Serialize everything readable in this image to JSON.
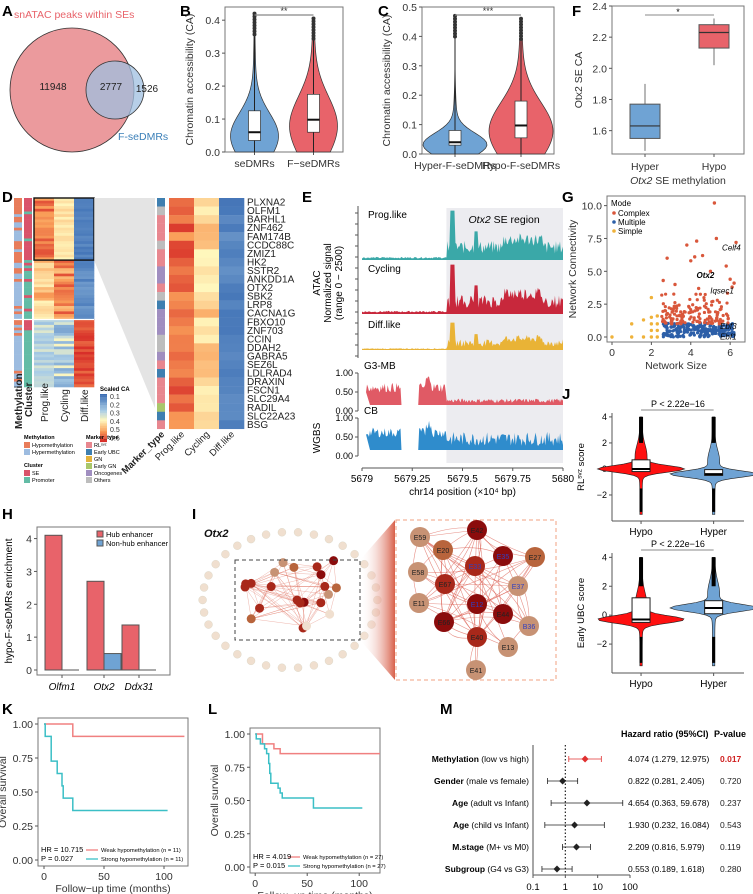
{
  "colors": {
    "red": "#e8636a",
    "blue": "#6fa3d4",
    "teal": "#3aa8a8",
    "crimson": "#c8283c",
    "gold": "#e9b336",
    "wgbs_red": "#e05a65",
    "wgbs_blue": "#2f8ccc",
    "km_red": "#f08080",
    "km_teal": "#3bbfc6",
    "forest_red": "#e03030"
  },
  "panels": {
    "A": {
      "label": "A",
      "title": "snATAC peaks within SEs",
      "set2_label": "F-seDMRs",
      "only_left": "11948",
      "overlap": "2777",
      "only_right": "1526"
    },
    "B": {
      "label": "B"
    },
    "C": {
      "label": "C"
    },
    "D": {
      "label": "D",
      "row_anno_labels": [
        "Methylation",
        "Cluster"
      ],
      "col_labels": [
        "Prog.like",
        "Cycling",
        "Diff.like"
      ],
      "zoom_col_labels": [
        "Marker_type",
        "Prog.like",
        "Cycling",
        "Diff.like"
      ],
      "scale_title": "Scaled CA",
      "scale_ticks": [
        "0.1",
        "0.2",
        "0.3",
        "0.4",
        "0.5",
        "0.6"
      ],
      "legend_methylation_title": "Methylation",
      "legend_methylation": [
        "Hypomethylation",
        "Hypermethylation"
      ],
      "legend_cluster_title": "Cluster",
      "legend_cluster": [
        "SE",
        "Promoter"
      ],
      "legend_marker_title": "Marker_type",
      "legend_marker": [
        "RLˢᵛᶻ",
        "Early UBC",
        "GN",
        "Early GN",
        "Oncogenes",
        "Others"
      ],
      "genes": [
        "PLXNA2",
        "OLFM1",
        "BARHL1",
        "ZNF462",
        "FAM174B",
        "CCDC88C",
        "ZMIZ1",
        "HK2",
        "SSTR2",
        "ANKDD1A",
        "OTX2",
        "SBK2",
        "LRP8",
        "CACNA1G",
        "FBXO10",
        "ZNF703",
        "CCIN",
        "DDAH2",
        "GABRA5",
        "SEZ6L",
        "LDLRAD4",
        "DRAXIN",
        "FSCN1",
        "SLC29A4",
        "RADIL",
        "SLC22A23",
        "BSG"
      ]
    },
    "E": {
      "label": "E",
      "region_label_italic": "Otx2",
      "region_label_rest": " SE region",
      "tracks_atac": [
        "Prog.like",
        "Cycling",
        "Diff.like"
      ],
      "tracks_wgbs": [
        "G3-MB",
        "CB"
      ],
      "ylabel_atac": [
        "ATAC",
        "Normalized signal",
        "(range 0 − 2500)"
      ],
      "ylabel_wgbs": "WGBS",
      "wgbs_ticks": [
        "1.00",
        "0.50",
        "0.00"
      ],
      "x_ticks": [
        "5679",
        "5679.25",
        "5679.5",
        "5679.75",
        "5680"
      ],
      "xlabel": "chr14 position (×10⁴ bp)"
    },
    "F": {
      "label": "F"
    },
    "G": {
      "label": "G"
    },
    "H": {
      "label": "H"
    },
    "I": {
      "label": "I",
      "gene": "Otx2",
      "zoom_nodes": [
        {
          "id": "E59",
          "level": 1
        },
        {
          "id": "E42",
          "level": 4
        },
        {
          "id": "E20",
          "level": 2
        },
        {
          "id": "E35",
          "level": 4,
          "blue": true
        },
        {
          "id": "E27",
          "level": 2
        },
        {
          "id": "E33",
          "level": 3,
          "blue": true
        },
        {
          "id": "E58",
          "level": 1
        },
        {
          "id": "E67",
          "level": 3
        },
        {
          "id": "E37",
          "level": 1,
          "blue": true
        },
        {
          "id": "E12",
          "level": 4,
          "blue": true
        },
        {
          "id": "E11",
          "level": 1
        },
        {
          "id": "E44",
          "level": 4
        },
        {
          "id": "E66",
          "level": 4
        },
        {
          "id": "B36",
          "level": 1,
          "blue": true
        },
        {
          "id": "E40",
          "level": 3
        },
        {
          "id": "E13",
          "level": 1
        },
        {
          "id": "E41",
          "level": 1
        }
      ]
    },
    "J": {
      "label": "J"
    },
    "K": {
      "label": "K"
    },
    "L": {
      "label": "L"
    },
    "M": {
      "label": "M",
      "col_hr": "Hazard ratio (95%CI)",
      "col_p": "P-value",
      "rows": [
        {
          "bold": "Methylation",
          "rest": " (low vs high)",
          "hr": 4.074,
          "lo": 1.279,
          "hi": 12.975,
          "text": "4.074 (1.279, 12.975)",
          "p": "0.017",
          "sig": true
        },
        {
          "bold": "Gender",
          "rest": " (male vs female)",
          "hr": 0.822,
          "lo": 0.281,
          "hi": 2.405,
          "text": "0.822 (0.281, 2.405)",
          "p": "0.720",
          "sig": false
        },
        {
          "bold": "Age",
          "rest": " (adult vs Infant)",
          "hr": 4.654,
          "lo": 0.363,
          "hi": 59.678,
          "text": "4.654 (0.363, 59.678)",
          "p": "0.237",
          "sig": false
        },
        {
          "bold": "Age",
          "rest": " (child vs Infant)",
          "hr": 1.93,
          "lo": 0.232,
          "hi": 16.084,
          "text": "1.930 (0.232, 16.084)",
          "p": "0.543",
          "sig": false
        },
        {
          "bold": "M.stage",
          "rest": " (M+ vs M0)",
          "hr": 2.209,
          "lo": 0.816,
          "hi": 5.979,
          "text": "2.209 (0.816, 5.979)",
          "p": "0.119",
          "sig": false
        },
        {
          "bold": "Subgroup",
          "rest": " (G4 vs G3)",
          "hr": 0.553,
          "lo": 0.189,
          "hi": 1.618,
          "text": "0.553 (0.189, 1.618)",
          "p": "0.280",
          "sig": false
        }
      ],
      "x_ticks": [
        "0.1",
        "1",
        "10",
        "100"
      ]
    }
  },
  "chart_data": [
    {
      "panel": "A",
      "type": "venn",
      "title": "snATAC peaks within SEs",
      "sets": [
        {
          "name": "snATAC peaks within SEs",
          "only": 11948
        },
        {
          "name": "F-seDMRs",
          "only": 1526
        }
      ],
      "overlap": 2777
    },
    {
      "panel": "B",
      "type": "violin",
      "ylabel": "Chromatin accessibility (CA)",
      "categories": [
        "seDMRs",
        "F−seDMRs"
      ],
      "ylim": [
        0,
        0.44
      ],
      "yticks": [
        "0.0",
        "0.1",
        "0.2",
        "0.3",
        "0.4"
      ],
      "significance": "**",
      "series": [
        {
          "name": "seDMRs",
          "median": 0.06,
          "q1": 0.035,
          "q3": 0.125,
          "max": 0.42,
          "color": "blue"
        },
        {
          "name": "F−seDMRs",
          "median": 0.098,
          "q1": 0.06,
          "q3": 0.175,
          "max": 0.405,
          "color": "red"
        }
      ]
    },
    {
      "panel": "C",
      "type": "violin",
      "ylabel": "Chromatin accessibility (CA)",
      "categories": [
        "Hyper-F-seDMRs",
        "Hypo-F-seDMRs"
      ],
      "ylim": [
        0,
        0.5
      ],
      "yticks": [
        "0.0",
        "0.1",
        "0.2",
        "0.3",
        "0.4",
        "0.5"
      ],
      "significance": "***",
      "series": [
        {
          "name": "Hyper-F-seDMRs",
          "median": 0.04,
          "q1": 0.03,
          "q3": 0.08,
          "max": 0.47,
          "color": "blue"
        },
        {
          "name": "Hypo-F-seDMRs",
          "median": 0.097,
          "q1": 0.055,
          "q3": 0.18,
          "max": 0.46,
          "color": "red"
        }
      ]
    },
    {
      "panel": "F",
      "type": "box",
      "ylabel": "Otx2 SE CA",
      "xlabel": "Otx2 SE methylation",
      "categories": [
        "Hyper",
        "Hypo"
      ],
      "ylim": [
        1.45,
        2.4
      ],
      "yticks": [
        "1.6",
        "1.8",
        "2.0",
        "2.2",
        "2.4"
      ],
      "significance": "*",
      "series": [
        {
          "name": "Hyper",
          "min": 1.47,
          "q1": 1.55,
          "median": 1.63,
          "q3": 1.77,
          "max": 1.9,
          "color": "blue"
        },
        {
          "name": "Hypo",
          "min": 2.02,
          "q1": 2.13,
          "median": 2.23,
          "q3": 2.28,
          "max": 2.32,
          "color": "red"
        }
      ]
    },
    {
      "panel": "G",
      "type": "scatter",
      "xlabel": "Network Size",
      "ylabel": "Network Connectivity",
      "xlim": [
        0,
        6.5
      ],
      "ylim": [
        0,
        10.2
      ],
      "xticks": [
        "0",
        "2",
        "4",
        "6"
      ],
      "yticks": [
        "0.0",
        "2.5",
        "5.0",
        "7.5",
        "10.0"
      ],
      "legend_title": "Mode",
      "legend": [
        "Complex",
        "Multiple",
        "Simple"
      ],
      "legend_position": "top-left",
      "annotations": [
        {
          "label": "Celf4",
          "x": 6.3,
          "y": 6.6
        },
        {
          "label": "Otx2",
          "x": 4.7,
          "y": 4.5,
          "bold": true
        },
        {
          "label": "Iqsec1",
          "x": 5.7,
          "y": 3.3
        },
        {
          "label": "Ebf3",
          "x": 6.2,
          "y": 0.6
        },
        {
          "label": "Ebf1",
          "x": 6.2,
          "y": -0.2
        }
      ],
      "simple_points": [
        [
          0,
          0
        ],
        [
          1,
          0
        ],
        [
          1,
          1
        ],
        [
          1.6,
          0
        ],
        [
          1.6,
          1.3
        ],
        [
          2,
          0
        ],
        [
          2,
          0.5
        ],
        [
          2,
          1
        ],
        [
          2,
          1.5
        ],
        [
          2,
          3
        ],
        [
          2.3,
          0
        ],
        [
          2.3,
          0.5
        ],
        [
          2.3,
          1
        ],
        [
          2.3,
          1.6
        ]
      ],
      "highlight_points": [
        [
          5.2,
          10.2
        ],
        [
          2.8,
          6.0
        ],
        [
          3.8,
          7.0
        ],
        [
          4.3,
          7.3
        ],
        [
          5.3,
          7.5
        ],
        [
          6.3,
          7.2
        ],
        [
          4.0,
          5.8
        ],
        [
          4.2,
          6.1
        ],
        [
          4.6,
          6.2
        ],
        [
          5.0,
          5.0
        ],
        [
          5.8,
          5.4
        ],
        [
          2.6,
          4.3
        ],
        [
          3.2,
          4.0
        ],
        [
          4.4,
          3.7
        ],
        [
          6.1,
          3.8
        ],
        [
          6.0,
          4.4
        ],
        [
          6.2,
          4.1
        ]
      ]
    },
    {
      "panel": "H",
      "type": "bar",
      "ylabel": "hypo-F-seDMRs enrichment",
      "categories": [
        "Olfm1",
        "Otx2",
        "Ddx31"
      ],
      "ylim": [
        0,
        4.2
      ],
      "yticks": [
        "0",
        "1",
        "2",
        "3",
        "4"
      ],
      "legend_position": "top-right",
      "series": [
        {
          "name": "Hub enhancer",
          "values": [
            4.1,
            2.7,
            1.37
          ]
        },
        {
          "name": "Non-hub enhancer",
          "values": [
            0,
            0.5,
            0
          ]
        }
      ]
    },
    {
      "panel": "J",
      "type": "violin",
      "subplots": [
        {
          "ylabel": "RLˢᵛᶻ score",
          "categories": [
            "Hypo",
            "Hyper"
          ],
          "ylim": [
            -4,
            4.3
          ],
          "yticks": [
            "-2",
            "0",
            "2",
            "4"
          ],
          "pvalue": "P < 2.22e−16",
          "series": [
            {
              "name": "Hypo",
              "median": 0,
              "q1": -0.2,
              "q3": 0.7,
              "color": "#ff1010"
            },
            {
              "name": "Hyper",
              "median": -0.4,
              "q1": -0.5,
              "q3": -0.05,
              "color": "blue"
            }
          ]
        },
        {
          "ylabel": "Early UBC score",
          "categories": [
            "Hypo",
            "Hyper"
          ],
          "ylim": [
            -4,
            4.3
          ],
          "yticks": [
            "-2",
            "0",
            "2",
            "4"
          ],
          "pvalue": "P < 2.22e−16",
          "series": [
            {
              "name": "Hypo",
              "median": -0.3,
              "q1": -0.5,
              "q3": 1.2,
              "color": "#ff1010"
            },
            {
              "name": "Hyper",
              "median": 0.5,
              "q1": 0.1,
              "q3": 1.0,
              "color": "blue"
            }
          ]
        }
      ]
    },
    {
      "panel": "K",
      "type": "line",
      "ylabel": "Overall survival",
      "xlabel": "Follow−up time (months)",
      "xlim": [
        -5,
        120
      ],
      "ylim": [
        0,
        1
      ],
      "xticks": [
        "0",
        "50",
        "100"
      ],
      "yticks": [
        "0.00",
        "0.25",
        "0.50",
        "0.75",
        "1.00"
      ],
      "hr_text": "HR = 10.715",
      "p_text": "P = 0.027",
      "series": [
        {
          "name": "Weak hypomethylation (n = 11)",
          "color": "km_red",
          "steps": [
            [
              0,
              1
            ],
            [
              24,
              1
            ],
            [
              24,
              0.909
            ],
            [
              117,
              0.909
            ]
          ]
        },
        {
          "name": "Strong hypomethylation (n = 11)",
          "color": "km_teal",
          "steps": [
            [
              0,
              1
            ],
            [
              1,
              1
            ],
            [
              1,
              0.909
            ],
            [
              6,
              0.909
            ],
            [
              6,
              0.727
            ],
            [
              11,
              0.727
            ],
            [
              11,
              0.636
            ],
            [
              15,
              0.636
            ],
            [
              15,
              0.545
            ],
            [
              16,
              0.545
            ],
            [
              16,
              0.455
            ],
            [
              24,
              0.455
            ],
            [
              24,
              0.364
            ],
            [
              103,
              0.364
            ]
          ]
        }
      ]
    },
    {
      "panel": "L",
      "type": "line",
      "ylabel": "Overall survival",
      "xlabel": "Follow−up time (months)",
      "xlim": [
        -5,
        120
      ],
      "ylim": [
        0,
        1
      ],
      "xticks": [
        "0",
        "50",
        "100"
      ],
      "yticks": [
        "0.00",
        "0.25",
        "0.50",
        "0.75",
        "1.00"
      ],
      "hr_text": "HR = 4.019",
      "p_text": "P = 0.015",
      "series": [
        {
          "name": "Weak hypomethylation (n = 27)",
          "color": "km_red",
          "steps": [
            [
              0,
              1
            ],
            [
              7,
              1
            ],
            [
              7,
              0.926
            ],
            [
              18,
              0.926
            ],
            [
              18,
              0.889
            ],
            [
              24,
              0.889
            ],
            [
              24,
              0.852
            ],
            [
              120,
              0.852
            ]
          ]
        },
        {
          "name": "Strong hypomethylation (n = 27)",
          "color": "km_teal",
          "steps": [
            [
              0,
              1
            ],
            [
              1,
              1
            ],
            [
              1,
              0.963
            ],
            [
              5,
              0.963
            ],
            [
              5,
              0.926
            ],
            [
              9,
              0.926
            ],
            [
              9,
              0.889
            ],
            [
              11,
              0.889
            ],
            [
              11,
              0.852
            ],
            [
              13,
              0.852
            ],
            [
              13,
              0.778
            ],
            [
              14,
              0.778
            ],
            [
              14,
              0.704
            ],
            [
              15,
              0.704
            ],
            [
              15,
              0.63
            ],
            [
              22,
              0.63
            ],
            [
              22,
              0.593
            ],
            [
              24,
              0.593
            ],
            [
              24,
              0.556
            ],
            [
              26,
              0.556
            ],
            [
              26,
              0.519
            ],
            [
              56,
              0.519
            ],
            [
              56,
              0.444
            ],
            [
              103,
              0.444
            ]
          ]
        }
      ]
    },
    {
      "panel": "M",
      "type": "forest",
      "columns": [
        "Hazard ratio (95%CI)",
        "P-value"
      ],
      "xscale": "log",
      "xlim": [
        0.1,
        100
      ],
      "xticks": [
        "0.1",
        "1",
        "10",
        "100"
      ],
      "reference_line": 1
    }
  ]
}
